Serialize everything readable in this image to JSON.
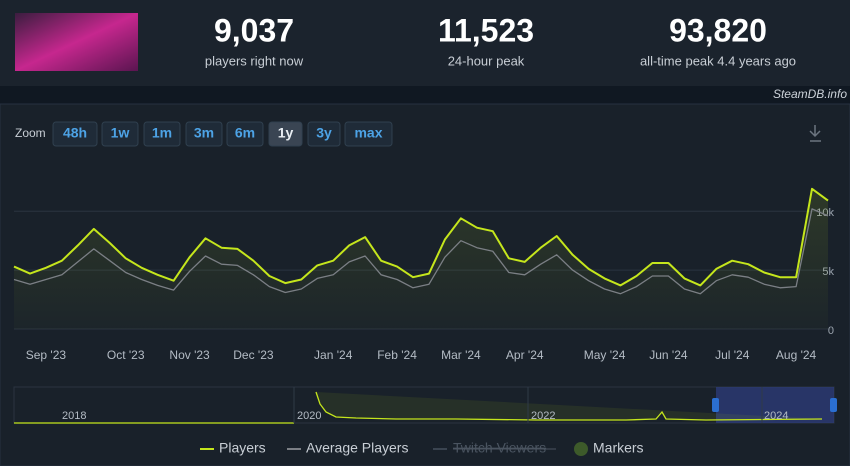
{
  "header": {
    "stats": [
      {
        "value": "9,037",
        "label": "players right now"
      },
      {
        "value": "11,523",
        "label": "24-hour peak"
      },
      {
        "value": "93,820",
        "label": "all-time peak 4.4 years ago"
      }
    ]
  },
  "source": "SteamDB.info",
  "zoom": {
    "label": "Zoom",
    "buttons": [
      "48h",
      "1w",
      "1m",
      "3m",
      "6m",
      "1y",
      "3y",
      "max"
    ],
    "active": 5
  },
  "chart_data": {
    "type": "line",
    "categories": [
      null,
      null,
      "Sep '23",
      null,
      null,
      null,
      null,
      "Oct '23",
      null,
      null,
      null,
      "Nov '23",
      null,
      null,
      null,
      "Dec '23",
      null,
      null,
      null,
      null,
      "Jan '24",
      null,
      null,
      null,
      "Feb '24",
      null,
      null,
      null,
      "Mar '24",
      null,
      null,
      null,
      "Apr '24",
      null,
      null,
      null,
      null,
      "May '24",
      null,
      null,
      null,
      "Jun '24",
      null,
      null,
      null,
      "Jul '24",
      null,
      null,
      null,
      "Aug '24",
      null,
      null
    ],
    "series": [
      {
        "name": "Players",
        "color": "#c5e61c",
        "values": [
          5300,
          4700,
          5200,
          5800,
          7100,
          8500,
          7300,
          6000,
          5200,
          4600,
          4100,
          6100,
          7700,
          6900,
          6800,
          5800,
          4500,
          3900,
          4200,
          5400,
          5800,
          7100,
          7800,
          5800,
          5300,
          4400,
          4700,
          7600,
          9400,
          8600,
          8300,
          6000,
          5700,
          6900,
          7900,
          6300,
          5100,
          4300,
          3700,
          4500,
          5600,
          5600,
          4300,
          3700,
          5100,
          5800,
          5500,
          4800,
          4400,
          4400,
          11900,
          10900
        ]
      },
      {
        "name": "Average Players",
        "color": "#7b7f85",
        "values": [
          4200,
          3800,
          4200,
          4600,
          5700,
          6800,
          5800,
          4800,
          4200,
          3700,
          3300,
          4900,
          6200,
          5500,
          5400,
          4600,
          3600,
          3100,
          3400,
          4300,
          4600,
          5700,
          6200,
          4600,
          4200,
          3500,
          3800,
          6100,
          7500,
          6900,
          6600,
          4800,
          4600,
          5500,
          6300,
          5000,
          4100,
          3400,
          3000,
          3600,
          4500,
          4500,
          3400,
          3000,
          4100,
          4600,
          4400,
          3800,
          3500,
          3600,
          10200,
          9600
        ]
      }
    ],
    "legend_extra": [
      "Twitch Viewers",
      "Markers"
    ],
    "ylim": [
      0,
      13500
    ],
    "yticks": [
      0,
      {
        "value": 5000,
        "label": "5k"
      },
      {
        "value": 10000,
        "label": "10k"
      }
    ],
    "grid": true
  },
  "navigator": {
    "labels": [
      "2018",
      "2020",
      "2022",
      "2024"
    ]
  }
}
